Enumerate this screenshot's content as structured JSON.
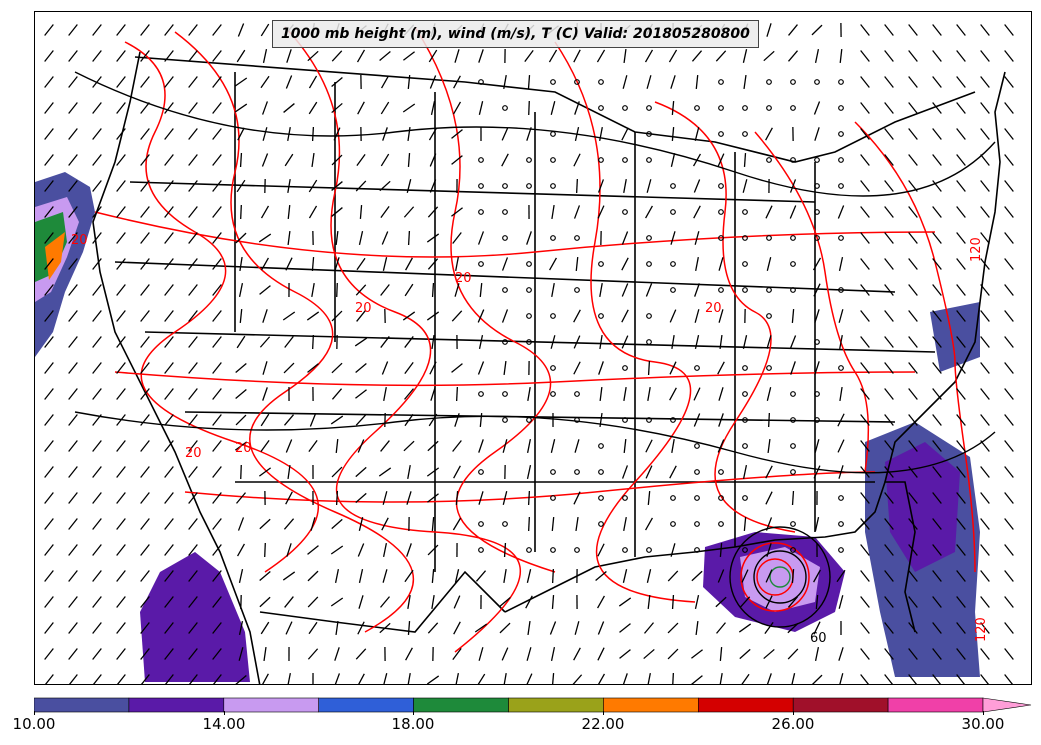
{
  "map": {
    "title": "1000 mb height (m), wind (m/s), T (C) Valid: 201805280800",
    "field_variable": "wind speed (m/s)",
    "contour_colors": {
      "temperature": "#ff0000",
      "height": "#000000",
      "boundaries": "#000000",
      "wind_barbs": "#000000"
    },
    "contour_labels": [
      "20",
      "20",
      "20",
      "20",
      "20",
      "20",
      "120",
      "120",
      "60"
    ]
  },
  "colorbar": {
    "levels": [
      10,
      12,
      14,
      16,
      18,
      20,
      22,
      24,
      26,
      28,
      30
    ],
    "colors": [
      "#4a4fa0",
      "#5a1aa8",
      "#c89af0",
      "#2f5fd8",
      "#1e8a3a",
      "#9aa21a",
      "#ff7a00",
      "#d40000",
      "#a0102a",
      "#f040a8",
      "#ff9ed8"
    ],
    "extend": "max",
    "tick_labels": [
      "10.00",
      "14.00",
      "18.00",
      "22.00",
      "26.00",
      "30.00"
    ]
  }
}
